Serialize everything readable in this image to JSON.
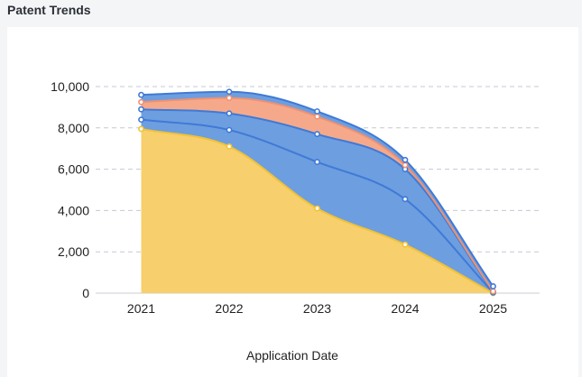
{
  "header": {
    "title": "Patent Trends"
  },
  "chart_data": {
    "type": "area",
    "stacked": true,
    "categories": [
      "2021",
      "2022",
      "2023",
      "2024",
      "2025"
    ],
    "xlabel": "Application Date",
    "ylabel": "",
    "ylim": [
      0,
      11000
    ],
    "yticks": [
      0,
      2000,
      4000,
      6000,
      8000,
      10000
    ],
    "ytick_labels": [
      "0",
      "2,000",
      "4,000",
      "6,000",
      "8,000",
      "10,000"
    ],
    "grid": true,
    "series": [
      {
        "values": [
          7950,
          7100,
          4100,
          2350,
          0
        ],
        "color": "#f7cf6d",
        "line": "#f2c233"
      },
      {
        "values": [
          450,
          800,
          2250,
          2200,
          30
        ],
        "color": "#6d9ee0",
        "line": "#3f7ad6"
      },
      {
        "values": [
          500,
          800,
          1350,
          1450,
          30
        ],
        "color": "#6d9ee0",
        "line": "#3f7ad6"
      },
      {
        "values": [
          350,
          750,
          850,
          200,
          30
        ],
        "color": "#f6a98a",
        "line": "#f09170"
      },
      {
        "values": [
          350,
          300,
          250,
          250,
          240
        ],
        "color": "#6d9ee0",
        "line": "#3f7ad6"
      }
    ]
  }
}
